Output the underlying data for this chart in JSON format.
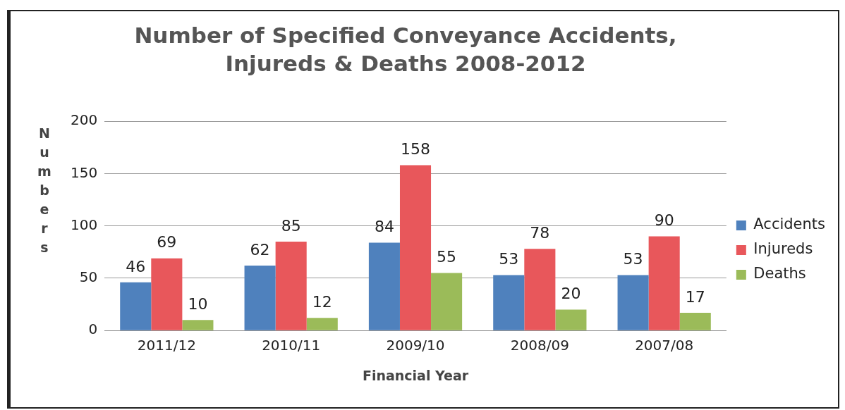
{
  "chart_data": {
    "type": "bar",
    "title": "Number of Specified Conveyance Accidents, Injureds & Deaths 2008-2012",
    "xlabel": "Financial Year",
    "ylabel": "Numbers",
    "categories": [
      "2011/12",
      "2010/11",
      "2009/10",
      "2008/09",
      "2007/08"
    ],
    "series": [
      {
        "name": "Accidents",
        "color": "#4f81bd",
        "values": [
          46,
          62,
          84,
          53,
          53
        ]
      },
      {
        "name": "Injureds",
        "color": "#e8575b",
        "values": [
          69,
          85,
          158,
          78,
          90
        ]
      },
      {
        "name": "Deaths",
        "color": "#9bbb59",
        "values": [
          10,
          12,
          55,
          20,
          17
        ]
      }
    ],
    "ylim": [
      0,
      200
    ],
    "yticks": [
      0,
      50,
      100,
      150,
      200
    ],
    "grid": "y",
    "legend": "right",
    "data_labels": true
  }
}
